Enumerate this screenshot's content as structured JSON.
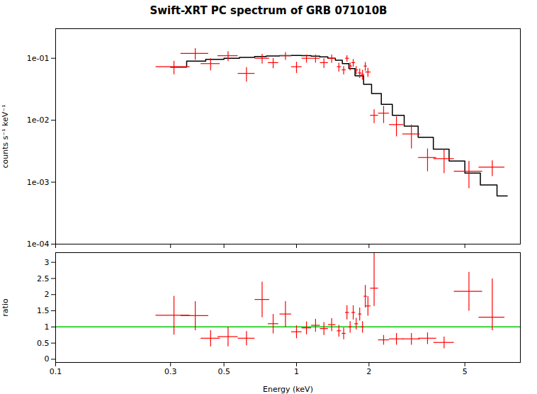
{
  "chart_data": [
    {
      "type": "errorbar",
      "title": "Swift-XRT PC spectrum of GRB 071010B",
      "ylabel": "counts s⁻¹ keV⁻¹",
      "log": true,
      "tick_labels": "y",
      "xlim": [
        0.1,
        8.5
      ],
      "xticks": [
        0.1,
        0.3,
        0.5,
        1,
        2,
        5
      ],
      "ylim": [
        0.0001,
        0.3
      ],
      "yticks": [
        {
          "value": 0.0001,
          "label": "1e-04"
        },
        {
          "value": 0.001,
          "label": "1e-03"
        },
        {
          "value": 0.01,
          "label": "1e-02"
        },
        {
          "value": 0.1,
          "label": "1e-01"
        }
      ],
      "series": [
        {
          "type": "step",
          "color": "#000000",
          "x_lo": [
            0.3,
            0.35,
            0.42,
            0.5,
            0.58,
            0.67,
            0.75,
            0.85,
            0.95,
            1.05,
            1.15,
            1.25,
            1.35,
            1.45,
            1.55,
            1.65,
            1.75,
            1.9,
            2.05,
            2.25,
            2.5,
            2.8,
            3.2,
            3.7,
            4.3,
            5.0,
            5.8,
            6.8
          ],
          "x_hi": [
            0.35,
            0.42,
            0.5,
            0.58,
            0.67,
            0.75,
            0.85,
            0.95,
            1.05,
            1.15,
            1.25,
            1.35,
            1.45,
            1.55,
            1.65,
            1.75,
            1.9,
            2.05,
            2.25,
            2.5,
            2.8,
            3.2,
            3.7,
            4.3,
            5.0,
            5.8,
            6.8,
            7.5
          ],
          "values": [
            0.072,
            0.09,
            0.096,
            0.1,
            0.103,
            0.107,
            0.109,
            0.11,
            0.111,
            0.11,
            0.108,
            0.105,
            0.1,
            0.093,
            0.082,
            0.068,
            0.052,
            0.038,
            0.027,
            0.018,
            0.012,
            0.008,
            0.0053,
            0.0034,
            0.0022,
            0.0014,
            0.0009,
            0.0006
          ]
        },
        {
          "type": "errorbar",
          "marker": "plus",
          "color": "#ff0000",
          "x": [
            0.31,
            0.38,
            0.44,
            0.52,
            0.62,
            0.72,
            0.8,
            0.9,
            1.0,
            1.1,
            1.2,
            1.3,
            1.4,
            1.5,
            1.57,
            1.62,
            1.67,
            1.72,
            1.77,
            1.83,
            1.88,
            1.93,
            1.98,
            2.1,
            2.3,
            2.6,
            3.0,
            3.5,
            4.1,
            5.2,
            6.5
          ],
          "xerr": [
            0.05,
            0.05,
            0.04,
            0.05,
            0.05,
            0.05,
            0.04,
            0.05,
            0.05,
            0.05,
            0.05,
            0.05,
            0.05,
            0.03,
            0.03,
            0.03,
            0.03,
            0.03,
            0.03,
            0.03,
            0.03,
            0.03,
            0.05,
            0.08,
            0.12,
            0.18,
            0.25,
            0.3,
            0.4,
            0.7,
            0.8
          ],
          "values": [
            0.073,
            0.12,
            0.082,
            0.11,
            0.057,
            0.1,
            0.085,
            0.11,
            0.073,
            0.1,
            0.1,
            0.085,
            0.1,
            0.073,
            0.065,
            0.1,
            0.075,
            0.085,
            0.065,
            0.058,
            0.055,
            0.075,
            0.06,
            0.012,
            0.013,
            0.0085,
            0.006,
            0.0025,
            0.0024,
            0.0015,
            0.00175
          ],
          "yerr_lo": [
            0.018,
            0.025,
            0.018,
            0.02,
            0.015,
            0.018,
            0.016,
            0.016,
            0.015,
            0.015,
            0.015,
            0.015,
            0.015,
            0.012,
            0.01,
            0.012,
            0.011,
            0.012,
            0.01,
            0.01,
            0.01,
            0.012,
            0.01,
            0.003,
            0.004,
            0.003,
            0.0025,
            0.001,
            0.001,
            0.0007,
            0.0005
          ],
          "yerr_hi": [
            0.018,
            0.025,
            0.018,
            0.02,
            0.015,
            0.018,
            0.016,
            0.016,
            0.015,
            0.015,
            0.015,
            0.015,
            0.015,
            0.012,
            0.01,
            0.012,
            0.011,
            0.012,
            0.01,
            0.01,
            0.01,
            0.012,
            0.01,
            0.003,
            0.004,
            0.003,
            0.0025,
            0.001,
            0.001,
            0.0007,
            0.0005
          ]
        }
      ]
    },
    {
      "type": "errorbar",
      "xlabel": "Energy (keV)",
      "ylabel": "ratio",
      "log": "x",
      "xlim": [
        0.1,
        8.5
      ],
      "xticks": [
        0.1,
        0.3,
        0.5,
        1,
        2,
        5
      ],
      "ylim": [
        -0.1,
        3.3
      ],
      "yticks": [
        0,
        0.5,
        1,
        1.5,
        2,
        2.5,
        3
      ],
      "series": [
        {
          "type": "hline",
          "color": "#00cc00",
          "values": [
            1.0
          ]
        },
        {
          "type": "errorbar",
          "marker": "plus",
          "color": "#ff0000",
          "x": [
            0.31,
            0.38,
            0.44,
            0.52,
            0.62,
            0.72,
            0.8,
            0.9,
            1.0,
            1.1,
            1.2,
            1.3,
            1.4,
            1.5,
            1.57,
            1.62,
            1.67,
            1.72,
            1.77,
            1.83,
            1.88,
            1.93,
            1.98,
            2.1,
            2.3,
            2.6,
            3.0,
            3.5,
            4.1,
            5.2,
            6.5
          ],
          "xerr": [
            0.05,
            0.05,
            0.04,
            0.05,
            0.05,
            0.05,
            0.04,
            0.05,
            0.05,
            0.05,
            0.05,
            0.05,
            0.05,
            0.03,
            0.03,
            0.03,
            0.03,
            0.03,
            0.03,
            0.03,
            0.03,
            0.03,
            0.05,
            0.08,
            0.12,
            0.18,
            0.25,
            0.3,
            0.4,
            0.7,
            0.8
          ],
          "values": [
            1.36,
            1.35,
            0.65,
            0.7,
            0.65,
            1.85,
            1.1,
            1.4,
            0.85,
            0.97,
            1.05,
            0.95,
            1.07,
            0.88,
            0.8,
            1.45,
            1.0,
            1.45,
            1.1,
            1.4,
            1.0,
            1.95,
            1.65,
            2.2,
            0.6,
            0.63,
            0.63,
            0.65,
            0.52,
            2.1,
            1.3
          ],
          "yerr_lo": [
            0.6,
            0.45,
            0.25,
            0.3,
            0.22,
            0.55,
            0.3,
            0.4,
            0.2,
            0.2,
            0.2,
            0.2,
            0.2,
            0.18,
            0.18,
            0.22,
            0.18,
            0.22,
            0.18,
            0.2,
            0.18,
            0.35,
            0.3,
            0.55,
            0.15,
            0.18,
            0.18,
            0.18,
            0.18,
            0.6,
            0.4
          ],
          "yerr_hi": [
            0.6,
            0.45,
            0.25,
            0.3,
            0.22,
            0.55,
            0.3,
            0.4,
            0.2,
            0.2,
            0.2,
            0.2,
            0.2,
            0.18,
            0.18,
            0.22,
            0.18,
            0.22,
            0.18,
            0.2,
            0.18,
            0.35,
            0.3,
            1.1,
            0.15,
            0.18,
            0.18,
            0.18,
            0.18,
            0.6,
            1.2
          ]
        }
      ]
    }
  ]
}
